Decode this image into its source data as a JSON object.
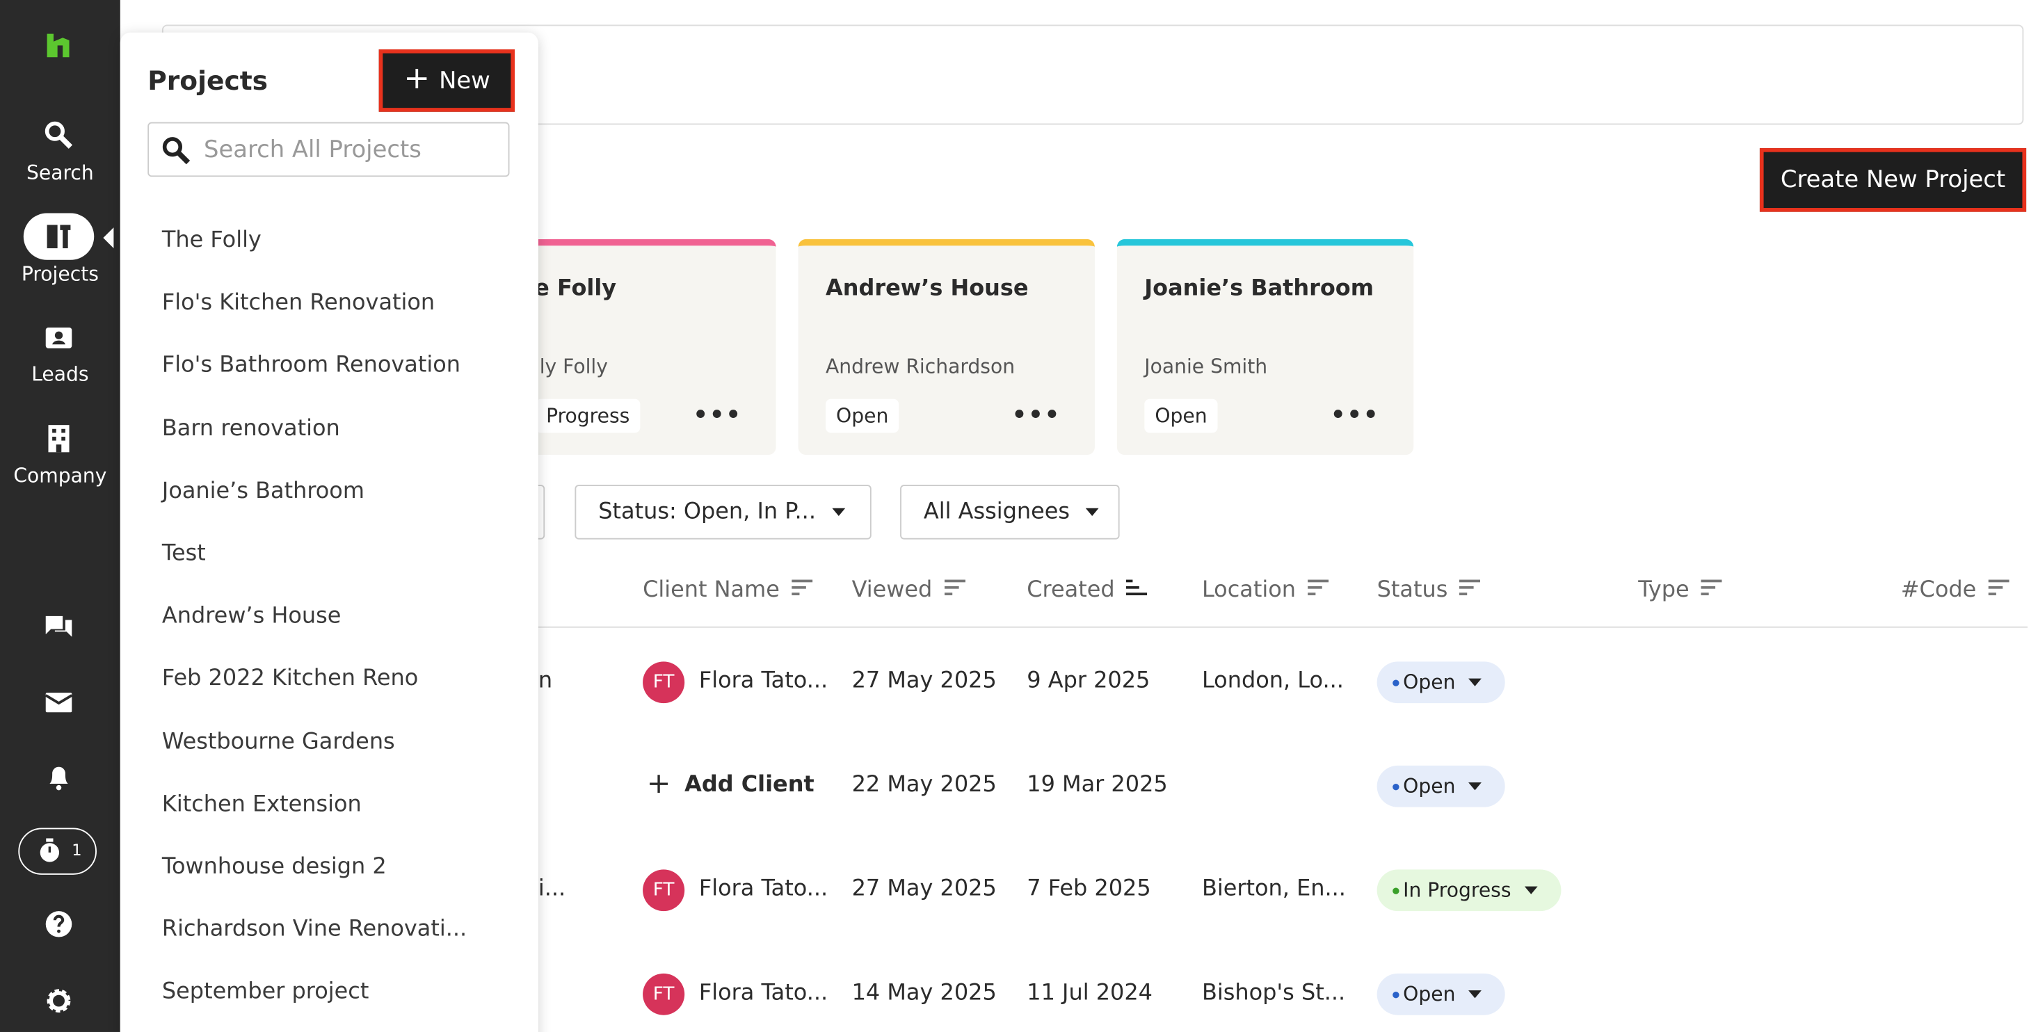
{
  "sidebar": {
    "nav": [
      "Search",
      "Projects",
      "Leads",
      "Company"
    ],
    "timer_count": "1"
  },
  "projects_panel": {
    "title": "Projects",
    "new_button": "New",
    "search_placeholder": "Search All Projects",
    "items": [
      "The Folly",
      "Flo's Kitchen Renovation",
      "Flo's Bathroom Renovation",
      "Barn renovation",
      "Joanie’s Bathroom",
      "Test",
      "Andrew’s House",
      "Feb 2022 Kitchen Reno",
      "Westbourne Gardens",
      "Kitchen Extension",
      "Townhouse design 2",
      "Richardson Vine Renovati...",
      "September project"
    ]
  },
  "create_button": "Create New Project",
  "cards": [
    {
      "title": "e Folly",
      "client": "ly Folly",
      "status": "Progress"
    },
    {
      "title": "Andrew’s House",
      "client": "Andrew Richardson",
      "status": "Open"
    },
    {
      "title": "Joanie’s Bathroom",
      "client": "Joanie Smith",
      "status": "Open"
    }
  ],
  "filters": [
    "Status: Open, In P...",
    "All Assignees"
  ],
  "table": {
    "headers": [
      "Client Name",
      "Viewed",
      "Created",
      "Location",
      "Status",
      "Type",
      "#Code"
    ],
    "rows": [
      {
        "fragment": "n",
        "initials": "FT",
        "client": "Flora Tato...",
        "viewed": "27 May 2025",
        "created": "9 Apr 2025",
        "location": "London, Lo...",
        "status": "Open"
      },
      {
        "client": "Add Client",
        "viewed": "22 May 2025",
        "created": "19 Mar 2025",
        "status": "Open"
      },
      {
        "fragment": "i...",
        "initials": "FT",
        "client": "Flora Tato...",
        "viewed": "27 May 2025",
        "created": "7 Feb 2025",
        "location": "Bierton, En...",
        "status": "In Progress"
      },
      {
        "initials": "FT",
        "client": "Flora Tato...",
        "viewed": "14 May 2025",
        "created": "11 Jul 2024",
        "location": "Bishop's St...",
        "status": "Open"
      }
    ]
  }
}
